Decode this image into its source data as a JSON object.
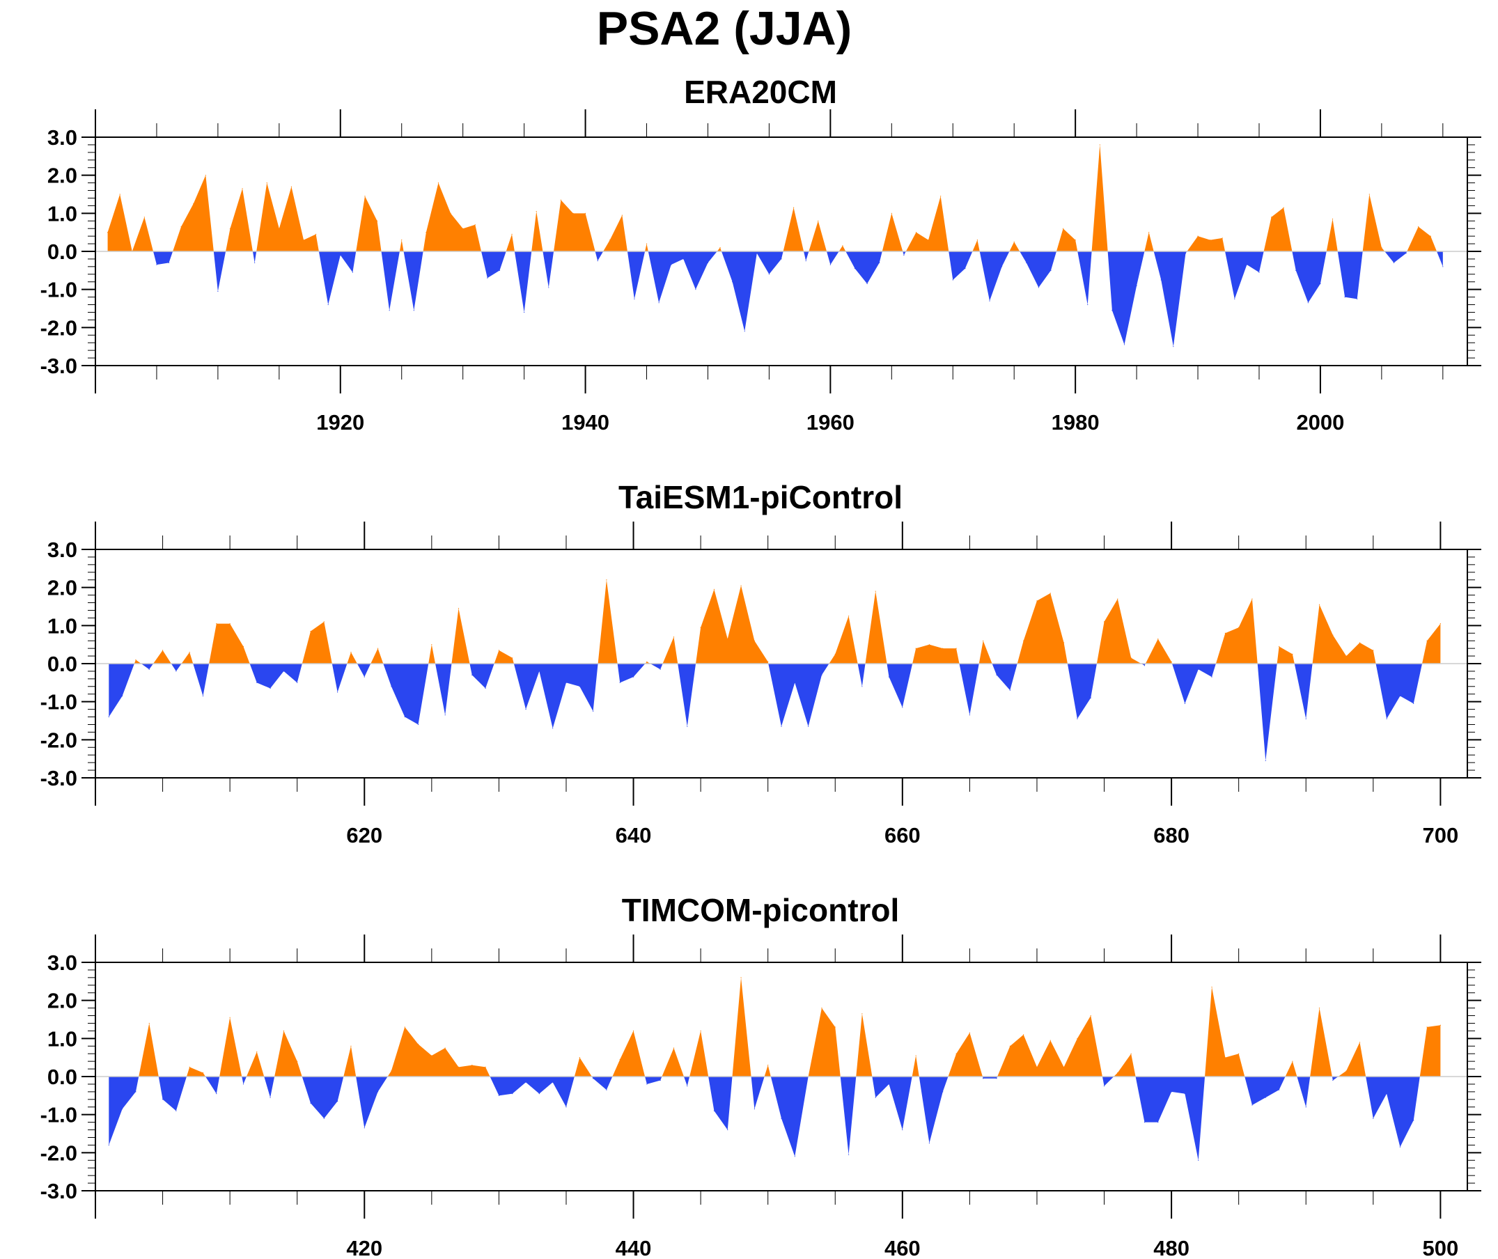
{
  "figure": {
    "title": "PSA2 (JJA)"
  },
  "colors": {
    "positive": "#ff8000",
    "negative": "#2a46f0",
    "axis": "#000000",
    "zero_line": "#cccccc"
  },
  "chart_data": [
    {
      "type": "area",
      "title": "ERA20CM",
      "x_start": 1901,
      "xlim": [
        1900,
        2012
      ],
      "ylim": [
        -3,
        3
      ],
      "x_ticks": [
        1920,
        1940,
        1960,
        1980,
        2000
      ],
      "x_tick_labels": [
        "1920",
        "1940",
        "1960",
        "1980",
        "2000"
      ],
      "y_ticks": [
        -3,
        -2,
        -1,
        0,
        1,
        2,
        3
      ],
      "y_tick_labels": [
        "-3.0",
        "-2.0",
        "-1.0",
        "0.0",
        "1.0",
        "2.0",
        "3.0"
      ],
      "fill": {
        "above_zero": "#ff8000",
        "below_zero": "#2a46f0"
      },
      "values": [
        0.5,
        1.5,
        0.0,
        0.9,
        -0.35,
        -0.3,
        0.65,
        1.25,
        2.0,
        -1.05,
        0.6,
        1.65,
        -0.3,
        1.8,
        0.6,
        1.7,
        0.3,
        0.45,
        -1.4,
        -0.1,
        -0.55,
        1.45,
        0.8,
        -1.55,
        0.3,
        -1.55,
        0.5,
        1.8,
        1.0,
        0.6,
        0.7,
        -0.7,
        -0.5,
        0.45,
        -1.6,
        1.05,
        -0.95,
        1.35,
        1.0,
        1.0,
        -0.25,
        0.3,
        0.95,
        -1.25,
        0.2,
        -1.35,
        -0.35,
        -0.2,
        -1.0,
        -0.3,
        0.1,
        -0.8,
        -2.1,
        -0.05,
        -0.6,
        -0.2,
        1.15,
        -0.25,
        0.8,
        -0.35,
        0.15,
        -0.45,
        -0.85,
        -0.3,
        1.0,
        -0.1,
        0.5,
        0.3,
        1.45,
        -0.75,
        -0.45,
        0.3,
        -1.3,
        -0.4,
        0.25,
        -0.3,
        -0.95,
        -0.5,
        0.6,
        0.3,
        -1.4,
        2.8,
        -1.55,
        -2.45,
        -0.9,
        0.5,
        -0.75,
        -2.5,
        -0.05,
        0.4,
        0.3,
        0.35,
        -1.25,
        -0.35,
        -0.55,
        0.9,
        1.15,
        -0.5,
        -1.35,
        -0.85,
        0.85,
        -1.2,
        -1.25,
        1.5,
        0.1,
        -0.3,
        -0.05,
        0.65,
        0.4,
        -0.4
      ]
    },
    {
      "type": "area",
      "title": "TaiESM1-piControl",
      "x_start": 601,
      "xlim": [
        600,
        702
      ],
      "ylim": [
        -3,
        3
      ],
      "x_ticks": [
        620,
        640,
        660,
        680,
        700
      ],
      "x_tick_labels": [
        "620",
        "640",
        "660",
        "680",
        "700"
      ],
      "y_ticks": [
        -3,
        -2,
        -1,
        0,
        1,
        2,
        3
      ],
      "y_tick_labels": [
        "-3.0",
        "-2.0",
        "-1.0",
        "0.0",
        "1.0",
        "2.0",
        "3.0"
      ],
      "fill": {
        "above_zero": "#ff8000",
        "below_zero": "#2a46f0"
      },
      "values": [
        -1.4,
        -0.85,
        0.1,
        -0.15,
        0.35,
        -0.2,
        0.3,
        -0.85,
        1.05,
        1.05,
        0.45,
        -0.5,
        -0.65,
        -0.2,
        -0.5,
        0.85,
        1.1,
        -0.75,
        0.3,
        -0.35,
        0.4,
        -0.6,
        -1.4,
        -1.6,
        0.5,
        -1.35,
        1.45,
        -0.3,
        -0.65,
        0.35,
        0.15,
        -1.2,
        -0.2,
        -1.7,
        -0.5,
        -0.6,
        -1.25,
        2.2,
        -0.5,
        -0.35,
        0.05,
        -0.15,
        0.7,
        -1.65,
        0.95,
        1.95,
        0.65,
        2.05,
        0.6,
        0.05,
        -1.65,
        -0.5,
        -1.65,
        -0.3,
        0.25,
        1.25,
        -0.6,
        1.9,
        -0.35,
        -1.15,
        0.4,
        0.5,
        0.4,
        0.4,
        -1.35,
        0.6,
        -0.3,
        -0.7,
        0.6,
        1.65,
        1.85,
        0.55,
        -1.45,
        -0.9,
        1.1,
        1.7,
        0.15,
        -0.05,
        0.65,
        0.05,
        -1.05,
        -0.15,
        -0.35,
        0.8,
        0.95,
        1.7,
        -2.55,
        0.45,
        0.25,
        -1.45,
        1.55,
        0.75,
        0.2,
        0.55,
        0.35,
        -1.45,
        -0.85,
        -1.05,
        0.6,
        1.05
      ]
    },
    {
      "type": "area",
      "title": "TIMCOM-picontrol",
      "x_start": 401,
      "xlim": [
        400,
        502
      ],
      "ylim": [
        -3,
        3
      ],
      "x_ticks": [
        420,
        440,
        460,
        480,
        500
      ],
      "x_tick_labels": [
        "420",
        "440",
        "460",
        "480",
        "500"
      ],
      "y_ticks": [
        -3,
        -2,
        -1,
        0,
        1,
        2,
        3
      ],
      "y_tick_labels": [
        "-3.0",
        "-2.0",
        "-1.0",
        "0.0",
        "1.0",
        "2.0",
        "3.0"
      ],
      "fill": {
        "above_zero": "#ff8000",
        "below_zero": "#2a46f0"
      },
      "values": [
        -1.8,
        -0.85,
        -0.4,
        1.4,
        -0.6,
        -0.9,
        0.25,
        0.1,
        -0.45,
        1.55,
        -0.2,
        0.65,
        -0.55,
        1.2,
        0.4,
        -0.7,
        -1.1,
        -0.65,
        0.8,
        -1.35,
        -0.4,
        0.15,
        1.3,
        0.85,
        0.55,
        0.75,
        0.25,
        0.3,
        0.25,
        -0.5,
        -0.45,
        -0.15,
        -0.45,
        -0.15,
        -0.8,
        0.5,
        -0.05,
        -0.35,
        0.45,
        1.2,
        -0.2,
        -0.1,
        0.75,
        -0.25,
        1.2,
        -0.9,
        -1.4,
        2.6,
        -0.85,
        0.3,
        -1.1,
        -2.1,
        0.0,
        1.8,
        1.3,
        -2.05,
        1.65,
        -0.55,
        -0.2,
        -1.4,
        0.55,
        -1.75,
        -0.4,
        0.6,
        1.15,
        -0.05,
        -0.05,
        0.8,
        1.1,
        0.25,
        0.95,
        0.25,
        1.0,
        1.6,
        -0.25,
        0.1,
        0.6,
        -1.2,
        -1.2,
        -0.4,
        -0.45,
        -2.2,
        2.35,
        0.5,
        0.6,
        -0.75,
        -0.55,
        -0.35,
        0.4,
        -0.8,
        1.8,
        -0.1,
        0.15,
        0.9,
        -1.1,
        -0.45,
        -1.85,
        -1.15,
        1.3,
        1.35
      ]
    }
  ]
}
